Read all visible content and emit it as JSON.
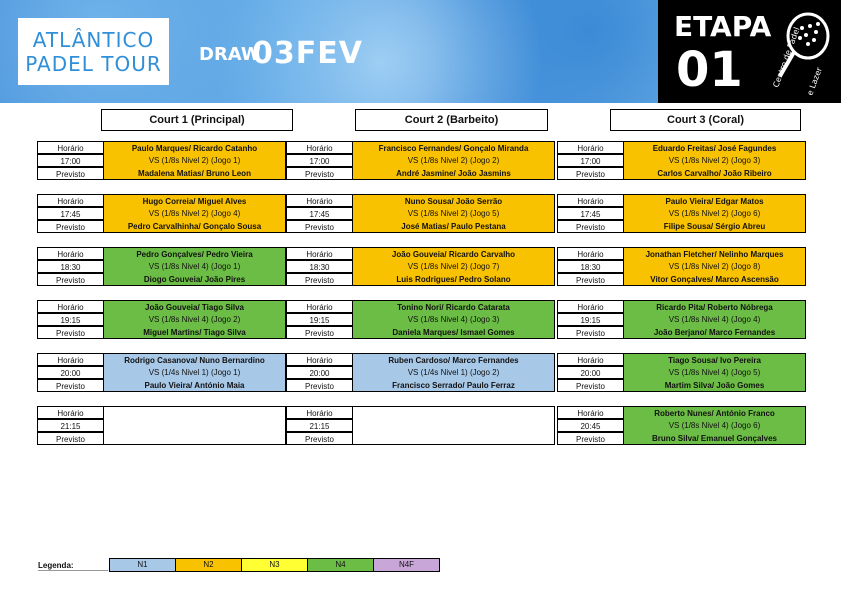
{
  "header": {
    "logo_line1": "ATLÂNTICO",
    "logo_line2": "PADEL TOUR",
    "draw_label": "DRAW",
    "draw_date": "03FEV",
    "etapa_label": "ETAPA",
    "etapa_number": "01",
    "club_text1": "Centro de Padel",
    "club_text2": "e Lazer"
  },
  "courts": [
    "Court 1 (Principal)",
    "Court 2 (Barbeito)",
    "Court 3 (Coral)"
  ],
  "labels": {
    "horario": "Horário",
    "previsto": "Previsto"
  },
  "rows": [
    {
      "slots": [
        {
          "time": "17:00",
          "team1": "Paulo Marques/ Ricardo Catanho",
          "info": "VS (1/8s Nivel 2) (Jogo 1)",
          "team2": "Madalena Matias/ Bruno Leon",
          "level": "n2"
        },
        {
          "time": "17:00",
          "team1": "Francisco Fernandes/ Gonçalo Miranda",
          "info": "VS (1/8s Nivel 2) (Jogo 2)",
          "team2": "André Jasmine/ João Jasmins",
          "level": "n2"
        },
        {
          "time": "17:00",
          "team1": "Eduardo Freitas/ José Fagundes",
          "info": "VS (1/8s Nivel 2) (Jogo 3)",
          "team2": "Carlos Carvalho/ João Ribeiro",
          "level": "n2"
        }
      ]
    },
    {
      "slots": [
        {
          "time": "17:45",
          "team1": "Hugo Correia/ Miguel Alves",
          "info": "VS (1/8s Nivel 2) (Jogo 4)",
          "team2": "Pedro Carvalhinha/ Gonçalo Sousa",
          "level": "n2"
        },
        {
          "time": "17:45",
          "team1": "Nuno Sousa/ João Serrão",
          "info": "VS (1/8s Nivel 2) (Jogo 5)",
          "team2": "José Matias/ Paulo Pestana",
          "level": "n2"
        },
        {
          "time": "17:45",
          "team1": "Paulo Vieira/ Edgar Matos",
          "info": "VS (1/8s Nivel 2) (Jogo 6)",
          "team2": "Filipe Sousa/ Sérgio Abreu",
          "level": "n2"
        }
      ]
    },
    {
      "slots": [
        {
          "time": "18:30",
          "team1": "Pedro Gonçalves/ Pedro Vieira",
          "info": "VS (1/8s Nivel 4) (Jogo 1)",
          "team2": "Diogo Gouveia/ João Pires",
          "level": "n4"
        },
        {
          "time": "18:30",
          "team1": "João Gouveia/ Ricardo Carvalho",
          "info": "VS (1/8s Nivel 2) (Jogo 7)",
          "team2": "Luis Rodrigues/ Pedro Solano",
          "level": "n2"
        },
        {
          "time": "18:30",
          "team1": "Jonathan Fletcher/ Nelinho Marques",
          "info": "VS (1/8s Nivel 2) (Jogo 8)",
          "team2": "Vitor Gonçalves/ Marco Ascensão",
          "level": "n2"
        }
      ]
    },
    {
      "slots": [
        {
          "time": "19:15",
          "team1": "João Gouveia/ Tiago Silva",
          "info": "VS (1/8s Nivel 4) (Jogo 2)",
          "team2": "Miguel Martins/ Tiago Silva",
          "level": "n4"
        },
        {
          "time": "19:15",
          "team1": "Tonino Nori/ Ricardo Catarata",
          "info": "VS (1/8s Nivel 4) (Jogo 3)",
          "team2": "Daniela Marques/ Ismael Gomes",
          "level": "n4"
        },
        {
          "time": "19:15",
          "team1": "Ricardo Pita/ Roberto Nóbrega",
          "info": "VS (1/8s Nivel 4) (Jogo 4)",
          "team2": "João Berjano/ Marco Fernandes",
          "level": "n4"
        }
      ]
    },
    {
      "slots": [
        {
          "time": "20:00",
          "team1": "Rodrigo Casanova/ Nuno Bernardino",
          "info": "VS (1/4s Nivel 1) (Jogo 1)",
          "team2": "Paulo Vieira/ António Maia",
          "level": "n1"
        },
        {
          "time": "20:00",
          "team1": "Ruben Cardoso/ Marco Fernandes",
          "info": "VS (1/4s Nivel 1) (Jogo 2)",
          "team2": "Francisco Serrado/ Paulo Ferraz",
          "level": "n1"
        },
        {
          "time": "20:00",
          "team1": "Tiago Sousa/ Ivo Pereira",
          "info": "VS (1/8s Nivel 4) (Jogo 5)",
          "team2": "Martim Silva/ João Gomes",
          "level": "n4"
        }
      ]
    },
    {
      "slots": [
        {
          "time": "21:15",
          "team1": "",
          "info": "",
          "team2": "",
          "level": "empty"
        },
        {
          "time": "21:15",
          "team1": "",
          "info": "",
          "team2": "",
          "level": "empty"
        },
        {
          "time": "20:45",
          "team1": "Roberto Nunes/ António Franco",
          "info": "VS (1/8s Nivel 4) (Jogo 6)",
          "team2": "Bruno Silva/ Emanuel Gonçalves",
          "level": "n4"
        }
      ]
    }
  ],
  "legend": {
    "label": "Legenda:",
    "items": [
      {
        "label": "N1",
        "level": "n1"
      },
      {
        "label": "N2",
        "level": "n2"
      },
      {
        "label": "N3",
        "level": "n3"
      },
      {
        "label": "N4",
        "level": "n4"
      },
      {
        "label": "N4F",
        "level": "n4f"
      }
    ]
  },
  "colors": {
    "n1": "#a8c8e8",
    "n2": "#f9c200",
    "n3": "#ffff33",
    "n4": "#6cbd45",
    "n4f": "#c9a6d8"
  }
}
